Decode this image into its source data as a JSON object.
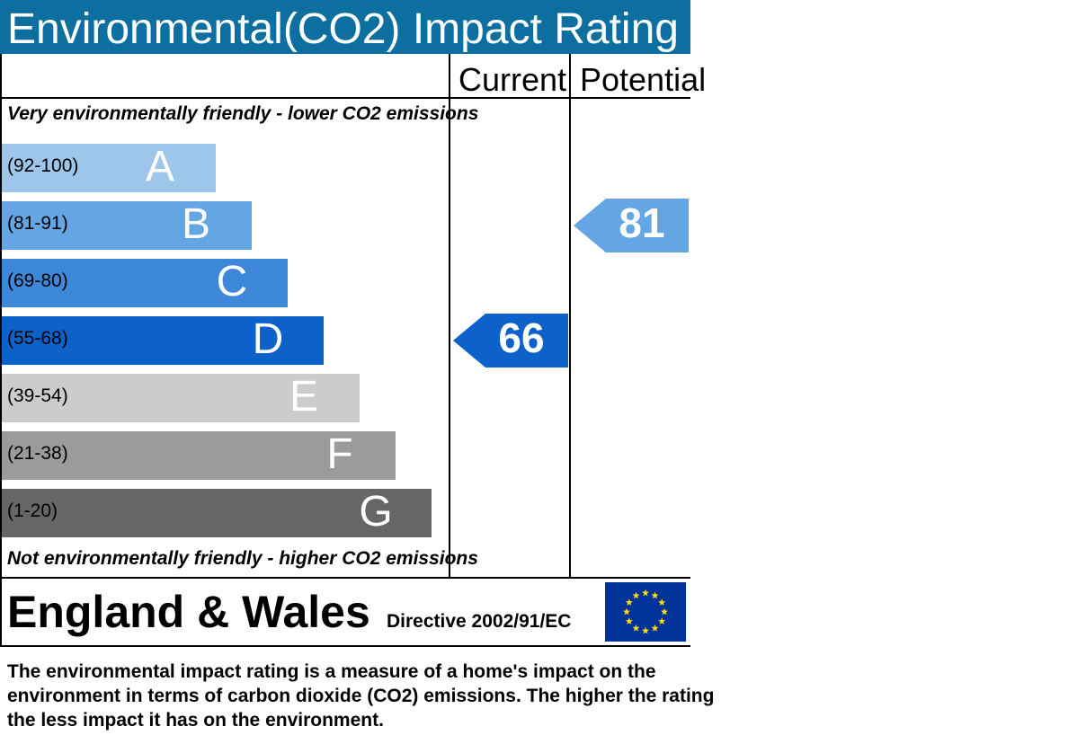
{
  "header": {
    "title": "Environmental(CO2) Impact Rating"
  },
  "columns": {
    "current": "Current",
    "potential": "Potential"
  },
  "edges": {
    "top": "Very environmentally friendly - lower CO2 emissions",
    "bottom": "Not environmentally friendly - higher CO2 emissions"
  },
  "chart_data": {
    "type": "bar",
    "title": "Environmental(CO2) Impact Rating",
    "bands": [
      {
        "range": "(92-100)",
        "letter": "A",
        "min": 92,
        "max": 100,
        "color": "#9ec6ea",
        "letter_color": "#ffffff"
      },
      {
        "range": "(81-91)",
        "letter": "B",
        "min": 81,
        "max": 91,
        "color": "#64a6e3",
        "letter_color": "#ffffff"
      },
      {
        "range": "(69-80)",
        "letter": "C",
        "min": 69,
        "max": 80,
        "color": "#3d88d8",
        "letter_color": "#ffffff"
      },
      {
        "range": "(55-68)",
        "letter": "D",
        "min": 55,
        "max": 68,
        "color": "#0d62c9",
        "letter_color": "#ffffff"
      },
      {
        "range": "(39-54)",
        "letter": "E",
        "min": 39,
        "max": 54,
        "color": "#cccccc",
        "letter_color": "#ffffff"
      },
      {
        "range": "(21-38)",
        "letter": "F",
        "min": 21,
        "max": 38,
        "color": "#9b9b9b",
        "letter_color": "#ffffff"
      },
      {
        "range": "(1-20)",
        "letter": "G",
        "min": 1,
        "max": 20,
        "color": "#666666",
        "letter_color": "#ffffff"
      }
    ],
    "current": {
      "value": 66,
      "band": "D",
      "color": "#0d62c9"
    },
    "potential": {
      "value": 81,
      "band": "B",
      "color": "#64a6e3"
    }
  },
  "footer_region": {
    "region": "England & Wales",
    "directive": "Directive 2002/91/EC",
    "flag_icon": "eu-flag-icon"
  },
  "description": {
    "lines": [
      "The environmental impact rating is a measure of a home's impact on the",
      "environment in terms of carbon dioxide (CO2) emissions. The higher the rating",
      "the less impact it has on the environment."
    ]
  }
}
